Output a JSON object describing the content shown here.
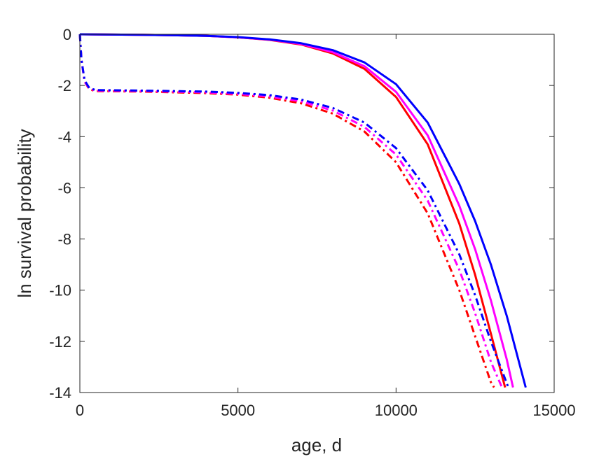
{
  "chart_data": {
    "type": "line",
    "title": "",
    "xlabel": "age, d",
    "ylabel": "ln survival probability",
    "xlim": [
      0,
      15000
    ],
    "ylim": [
      -14,
      0
    ],
    "xticks": [
      0,
      5000,
      10000,
      15000
    ],
    "yticks": [
      0,
      -2,
      -4,
      -6,
      -8,
      -10,
      -12,
      -14
    ],
    "xtick_labels": [
      "0",
      "5000",
      "10000",
      "15000"
    ],
    "ytick_labels": [
      "0",
      "-2",
      "-4",
      "-6",
      "-8",
      "-10",
      "-12",
      "-14"
    ],
    "grid": false,
    "box": true,
    "legend": "none",
    "series": [
      {
        "color": "#ff0000",
        "style": "solid",
        "x": [
          0,
          2000,
          4000,
          5000,
          6000,
          7000,
          8000,
          9000,
          10000,
          11000,
          12000,
          12500,
          13000,
          13450
        ],
        "y": [
          0,
          -0.02,
          -0.06,
          -0.12,
          -0.22,
          -0.4,
          -0.75,
          -1.35,
          -2.45,
          -4.3,
          -7.4,
          -9.4,
          -11.7,
          -13.8
        ]
      },
      {
        "color": "#ff00ff",
        "style": "solid",
        "x": [
          0,
          2000,
          4000,
          5000,
          6000,
          7000,
          8000,
          9000,
          10000,
          11000,
          12000,
          12500,
          13000,
          13500,
          13700
        ],
        "y": [
          0,
          -0.02,
          -0.06,
          -0.12,
          -0.21,
          -0.38,
          -0.7,
          -1.25,
          -2.25,
          -3.95,
          -6.7,
          -8.4,
          -10.4,
          -12.7,
          -13.8
        ]
      },
      {
        "color": "#0000ff",
        "style": "solid",
        "x": [
          0,
          2000,
          4000,
          5000,
          6000,
          7000,
          8000,
          9000,
          10000,
          11000,
          12000,
          12500,
          13000,
          13500,
          14100
        ],
        "y": [
          0,
          -0.02,
          -0.06,
          -0.11,
          -0.2,
          -0.35,
          -0.62,
          -1.1,
          -1.95,
          -3.45,
          -5.85,
          -7.3,
          -9.0,
          -11.0,
          -13.8
        ]
      },
      {
        "color": "#ff0000",
        "style": "dashdot",
        "x": [
          0,
          50,
          150,
          300,
          500,
          2000,
          4000,
          5000,
          6000,
          7000,
          8000,
          9000,
          10000,
          11000,
          12000,
          12500,
          13000,
          13100
        ],
        "y": [
          0,
          -1.0,
          -1.85,
          -2.15,
          -2.22,
          -2.24,
          -2.3,
          -2.36,
          -2.48,
          -2.7,
          -3.1,
          -3.8,
          -5.0,
          -7.0,
          -10.0,
          -11.8,
          -13.6,
          -13.8
        ]
      },
      {
        "color": "#ff00ff",
        "style": "dashdot",
        "x": [
          0,
          50,
          150,
          300,
          500,
          2000,
          4000,
          5000,
          6000,
          7000,
          8000,
          9000,
          10000,
          11000,
          12000,
          12500,
          13000,
          13350
        ],
        "y": [
          0,
          -1.0,
          -1.85,
          -2.12,
          -2.2,
          -2.22,
          -2.27,
          -2.33,
          -2.43,
          -2.62,
          -2.98,
          -3.62,
          -4.7,
          -6.5,
          -9.2,
          -10.9,
          -12.8,
          -13.8
        ]
      },
      {
        "color": "#0000ff",
        "style": "dashdot",
        "x": [
          0,
          50,
          150,
          300,
          500,
          2000,
          4000,
          5000,
          6000,
          7000,
          8000,
          9000,
          10000,
          11000,
          12000,
          12500,
          13000,
          13550
        ],
        "y": [
          0,
          -1.0,
          -1.8,
          -2.1,
          -2.18,
          -2.2,
          -2.24,
          -2.29,
          -2.38,
          -2.55,
          -2.88,
          -3.45,
          -4.45,
          -6.1,
          -8.6,
          -10.2,
          -12.0,
          -13.8
        ]
      }
    ]
  }
}
